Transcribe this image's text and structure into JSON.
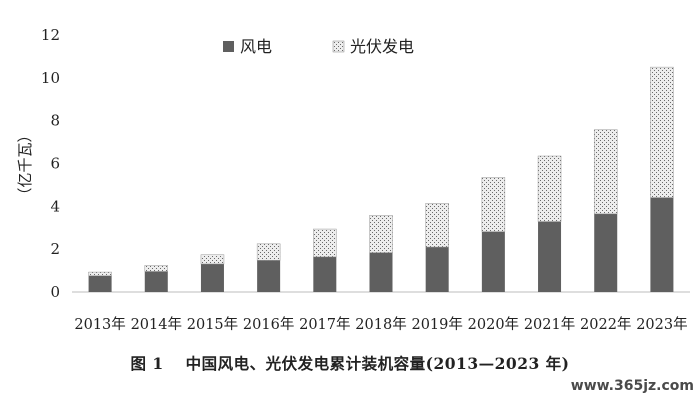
{
  "chart_data": {
    "type": "bar",
    "stacked": true,
    "categories": [
      "2013年",
      "2014年",
      "2015年",
      "2016年",
      "2017年",
      "2018年",
      "2019年",
      "2020年",
      "2021年",
      "2022年",
      "2023年"
    ],
    "series": [
      {
        "name": "风电",
        "values": [
          0.76,
          0.96,
          1.31,
          1.48,
          1.64,
          1.84,
          2.1,
          2.82,
          3.29,
          3.65,
          4.41
        ],
        "color": "#5f5f5f",
        "pattern": "solid"
      },
      {
        "name": "光伏发电",
        "values": [
          0.17,
          0.28,
          0.43,
          0.77,
          1.3,
          1.74,
          2.04,
          2.53,
          3.06,
          3.93,
          6.09
        ],
        "color": "#e9e9e9",
        "pattern": "crosshatch"
      }
    ],
    "title": "",
    "xlabel": "",
    "ylabel": "（亿千瓦）",
    "ylim": [
      0,
      12
    ],
    "yticks": [
      "0",
      "2",
      "4",
      "6",
      "8",
      "10",
      "12"
    ],
    "grid": false,
    "legend_position": "top"
  },
  "caption": {
    "figure_number": "图 1",
    "text": "中国风电、光伏发电累计装机容量(2013—2023 年)"
  },
  "watermark": "www.365jz.com"
}
